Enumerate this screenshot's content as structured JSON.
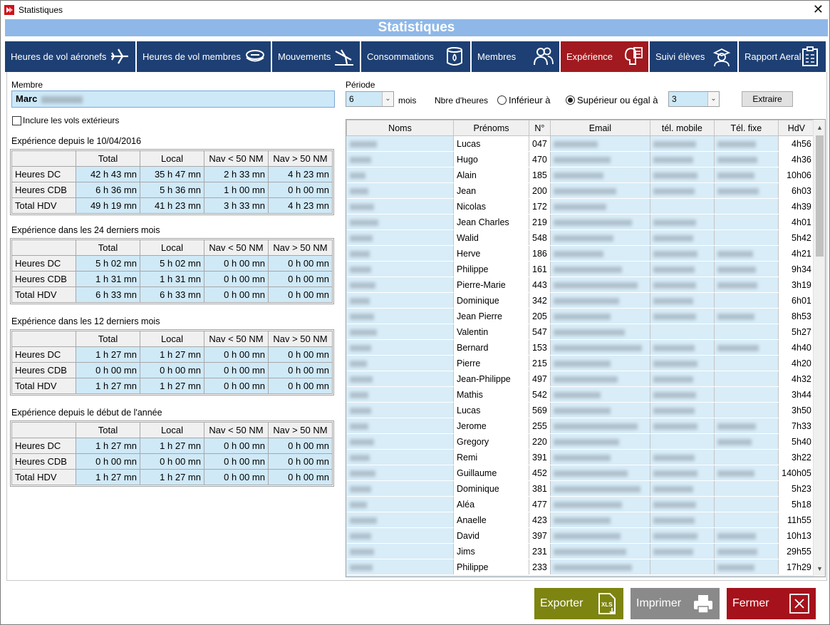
{
  "window": {
    "title": "Statistiques",
    "close_glyph": "✕"
  },
  "banner": "Statistiques",
  "tabs": [
    {
      "label": "Heures de vol aéronefs",
      "icon": "airplane-icon"
    },
    {
      "label": "Heures de vol membres",
      "icon": "pilot-cap-icon"
    },
    {
      "label": "Mouvements",
      "icon": "airplane-landing-icon"
    },
    {
      "label": "Consommations",
      "icon": "fuel-barrel-icon"
    },
    {
      "label": "Membres",
      "icon": "members-icon"
    },
    {
      "label": "Expérience",
      "icon": "experience-icon",
      "active": true
    },
    {
      "label": "Suivi élèves",
      "icon": "student-icon"
    },
    {
      "label": "Rapport Aeral",
      "icon": "report-icon"
    }
  ],
  "member": {
    "label": "Membre",
    "value": "Marc"
  },
  "include_ext": {
    "label": "Inclure les vols extérieurs",
    "checked": false
  },
  "period": {
    "label": "Période",
    "value": "6",
    "unit": "mois"
  },
  "hours_filter": {
    "label": "Nbre d'heures",
    "option_lt": "Inférieur à",
    "option_ge": "Supérieur ou égal à",
    "selected": "ge",
    "value": "3"
  },
  "extract_button": "Extraire",
  "exp_columns": [
    "Total",
    "Local",
    "Nav < 50 NM",
    "Nav > 50 NM"
  ],
  "exp_sections": [
    {
      "title": "Expérience depuis le 10/04/2016",
      "rows": [
        {
          "label": "Heures DC",
          "values": [
            "42 h 43 mn",
            "35 h 47 mn",
            "2 h 33 mn",
            "4 h 23 mn"
          ]
        },
        {
          "label": "Heures CDB",
          "values": [
            "6 h 36 mn",
            "5 h 36 mn",
            "1 h 00 mn",
            "0 h 00 mn"
          ]
        },
        {
          "label": "Total HDV",
          "values": [
            "49 h 19 mn",
            "41 h 23 mn",
            "3 h 33 mn",
            "4 h 23 mn"
          ]
        }
      ]
    },
    {
      "title": "Expérience dans les 24 derniers mois",
      "rows": [
        {
          "label": "Heures DC",
          "values": [
            "5 h 02 mn",
            "5 h 02 mn",
            "0 h 00 mn",
            "0 h 00 mn"
          ]
        },
        {
          "label": "Heures CDB",
          "values": [
            "1 h 31 mn",
            "1 h 31 mn",
            "0 h 00 mn",
            "0 h 00 mn"
          ]
        },
        {
          "label": "Total HDV",
          "values": [
            "6 h 33 mn",
            "6 h 33 mn",
            "0 h 00 mn",
            "0 h 00 mn"
          ]
        }
      ]
    },
    {
      "title": "Expérience dans les 12 derniers mois",
      "rows": [
        {
          "label": "Heures DC",
          "values": [
            "1 h 27 mn",
            "1 h 27 mn",
            "0 h 00 mn",
            "0 h 00 mn"
          ]
        },
        {
          "label": "Heures CDB",
          "values": [
            "0 h 00 mn",
            "0 h 00 mn",
            "0 h 00 mn",
            "0 h 00 mn"
          ]
        },
        {
          "label": "Total HDV",
          "values": [
            "1 h 27 mn",
            "1 h 27 mn",
            "0 h 00 mn",
            "0 h 00 mn"
          ]
        }
      ]
    },
    {
      "title": "Expérience depuis le début de l'année",
      "rows": [
        {
          "label": "Heures DC",
          "values": [
            "1 h 27 mn",
            "1 h 27 mn",
            "0 h 00 mn",
            "0 h 00 mn"
          ]
        },
        {
          "label": "Heures CDB",
          "values": [
            "0 h 00 mn",
            "0 h 00 mn",
            "0 h 00 mn",
            "0 h 00 mn"
          ]
        },
        {
          "label": "Total HDV",
          "values": [
            "1 h 27 mn",
            "1 h 27 mn",
            "0 h 00 mn",
            "0 h 00 mn"
          ]
        }
      ]
    }
  ],
  "list_columns": [
    "Noms",
    "Prénoms",
    "N°",
    "Email",
    "tél. mobile",
    "Tél. fixe",
    "HdV"
  ],
  "list_rows": [
    {
      "prenom": "Lucas",
      "num": "047",
      "hdv": "4h56"
    },
    {
      "prenom": "Hugo",
      "num": "470",
      "hdv": "4h36"
    },
    {
      "prenom": "Alain",
      "num": "185",
      "hdv": "10h06"
    },
    {
      "prenom": "Jean",
      "num": "200",
      "hdv": "6h03"
    },
    {
      "prenom": "Nicolas",
      "num": "172",
      "hdv": "4h39"
    },
    {
      "prenom": "Jean Charles",
      "num": "219",
      "hdv": "4h01"
    },
    {
      "prenom": "Walid",
      "num": "548",
      "hdv": "5h42"
    },
    {
      "prenom": "Herve",
      "num": "186",
      "hdv": "4h21"
    },
    {
      "prenom": "Philippe",
      "num": "161",
      "hdv": "9h34"
    },
    {
      "prenom": "Pierre-Marie",
      "num": "443",
      "hdv": "3h19"
    },
    {
      "prenom": "Dominique",
      "num": "342",
      "hdv": "6h01"
    },
    {
      "prenom": "Jean Pierre",
      "num": "205",
      "hdv": "8h53"
    },
    {
      "prenom": "Valentin",
      "num": "547",
      "hdv": "5h27"
    },
    {
      "prenom": "Bernard",
      "num": "153",
      "hdv": "4h40"
    },
    {
      "prenom": "Pierre",
      "num": "215",
      "hdv": "4h20"
    },
    {
      "prenom": "Jean-Philippe",
      "num": "497",
      "hdv": "4h32"
    },
    {
      "prenom": "Mathis",
      "num": "542",
      "hdv": "3h44"
    },
    {
      "prenom": "Lucas",
      "num": "569",
      "hdv": "3h50"
    },
    {
      "prenom": "Jerome",
      "num": "255",
      "hdv": "7h33"
    },
    {
      "prenom": "Gregory",
      "num": "220",
      "hdv": "5h40"
    },
    {
      "prenom": "Remi",
      "num": "391",
      "hdv": "3h22"
    },
    {
      "prenom": "Guillaume",
      "num": "452",
      "hdv": "140h05"
    },
    {
      "prenom": "Dominique",
      "num": "381",
      "hdv": "5h23"
    },
    {
      "prenom": "Aléa",
      "num": "477",
      "hdv": "5h18"
    },
    {
      "prenom": "Anaelle",
      "num": "423",
      "hdv": "11h55"
    },
    {
      "prenom": "David",
      "num": "397",
      "hdv": "10h13"
    },
    {
      "prenom": "Jims",
      "num": "231",
      "hdv": "29h55"
    },
    {
      "prenom": "Philippe",
      "num": "233",
      "hdv": "17h29"
    }
  ],
  "buttons": {
    "export": {
      "label": "Exporter",
      "color": "#7d8410",
      "icon": "xls-export-icon"
    },
    "print": {
      "label": "Imprimer",
      "color": "#8a8a8a",
      "icon": "printer-icon"
    },
    "close": {
      "label": "Fermer",
      "color": "#a5121b",
      "icon": "close-box-icon"
    }
  },
  "colors": {
    "tab": "#1d3f73",
    "tab_active": "#a11a1f",
    "banner": "#8fb8e8",
    "field": "#cde8f7"
  }
}
